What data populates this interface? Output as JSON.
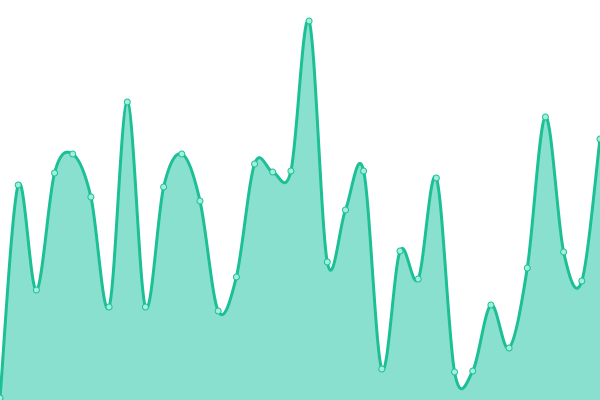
{
  "chart_data": {
    "type": "area",
    "title": "",
    "xlabel": "",
    "ylabel": "",
    "grid": false,
    "legend": "none",
    "smooth": true,
    "show_markers": true,
    "x": [
      0,
      1,
      2,
      3,
      4,
      5,
      6,
      7,
      8,
      9,
      10,
      11,
      12,
      13,
      14,
      15,
      16,
      17,
      18,
      19,
      20,
      21,
      22,
      23,
      24,
      25,
      26,
      27,
      28,
      29,
      30,
      31,
      32,
      33
    ],
    "values": [
      2,
      215,
      110,
      227,
      246,
      203,
      93,
      298,
      93,
      213,
      246,
      199,
      89,
      123,
      236,
      228,
      229,
      379,
      138,
      190,
      229,
      31,
      149,
      121,
      222,
      28,
      29,
      95,
      52,
      132,
      283,
      148,
      119,
      261
    ],
    "xlim": [
      0,
      33
    ],
    "ylim": [
      0,
      400
    ],
    "colors": {
      "line": "#1dbf95",
      "fill": "#8ae0cf",
      "marker_fill": "#9ff0dc",
      "marker_stroke": "#1dbf95"
    }
  }
}
